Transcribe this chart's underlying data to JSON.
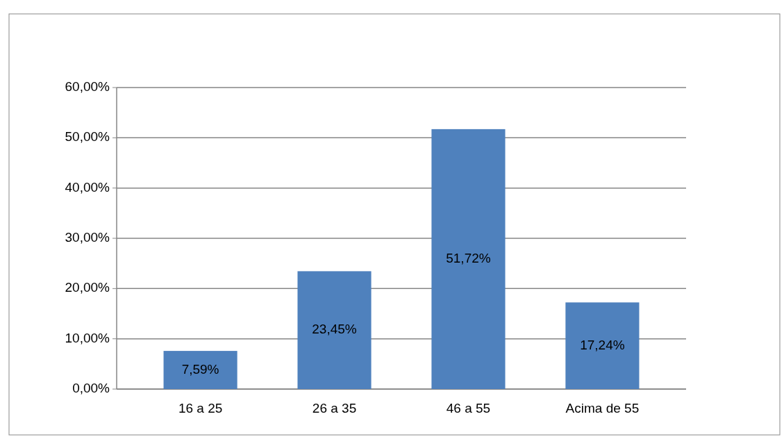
{
  "chart_data": {
    "type": "bar",
    "categories": [
      "16 a 25",
      "26 a 35",
      "46 a 55",
      "Acima de 55"
    ],
    "values": [
      7.59,
      23.45,
      51.72,
      17.24
    ],
    "value_labels": [
      "7,59%",
      "23,45%",
      "51,72%",
      "17,24%"
    ],
    "color": "#4f81bd",
    "ylim": [
      0,
      60
    ],
    "yticks": [
      {
        "value": 0,
        "label": "0,00%"
      },
      {
        "value": 10,
        "label": "10,00%"
      },
      {
        "value": 20,
        "label": "20,00%"
      },
      {
        "value": 30,
        "label": "30,00%"
      },
      {
        "value": 40,
        "label": "40,00%"
      },
      {
        "value": 50,
        "label": "50,00%"
      },
      {
        "value": 60,
        "label": "60,00%"
      }
    ],
    "grid": "y"
  }
}
